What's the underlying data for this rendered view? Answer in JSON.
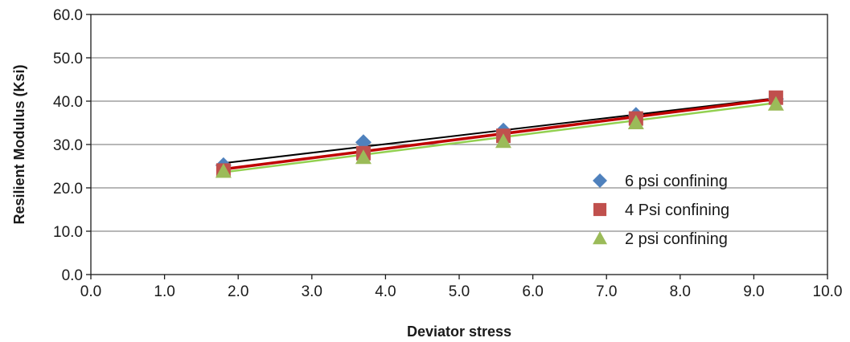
{
  "chart_data": {
    "type": "scatter",
    "title": "",
    "xlabel": "Deviator stress",
    "ylabel": "Resilient Modulus  (Ksi)",
    "xlim": [
      0,
      10
    ],
    "ylim": [
      0,
      60
    ],
    "x_ticks": [
      "0.0",
      "1.0",
      "2.0",
      "3.0",
      "4.0",
      "5.0",
      "6.0",
      "7.0",
      "8.0",
      "9.0",
      "10.0"
    ],
    "y_ticks": [
      "0.0",
      "10.0",
      "20.0",
      "30.0",
      "40.0",
      "50.0",
      "60.0"
    ],
    "grid": "horizontal",
    "legend_position": "right-center",
    "series": [
      {
        "name": "6 psi confining",
        "marker": "diamond",
        "color": "#4F81BD",
        "trendline_color": "#000000",
        "x": [
          1.8,
          3.7,
          5.6,
          7.4,
          9.3
        ],
        "y": [
          25.2,
          30.5,
          33.2,
          36.8,
          40.5
        ],
        "trendline": [
          [
            1.8,
            25.7
          ],
          [
            9.3,
            40.7
          ]
        ]
      },
      {
        "name": "4 Psi confining",
        "marker": "square",
        "color": "#C0504D",
        "trendline_color": "#C00000",
        "x": [
          1.8,
          3.7,
          5.6,
          7.4,
          9.3
        ],
        "y": [
          24.0,
          28.0,
          32.0,
          36.0,
          40.8
        ],
        "trendline": [
          [
            1.8,
            24.3
          ],
          [
            9.3,
            40.5
          ]
        ]
      },
      {
        "name": "2 psi confining",
        "marker": "triangle",
        "color": "#9BBB59",
        "trendline_color": "#92D050",
        "x": [
          1.8,
          3.7,
          5.6,
          7.4,
          9.3
        ],
        "y": [
          23.8,
          27.0,
          30.7,
          35.0,
          39.3
        ],
        "trendline": [
          [
            1.8,
            23.6
          ],
          [
            9.3,
            39.6
          ]
        ]
      }
    ]
  }
}
